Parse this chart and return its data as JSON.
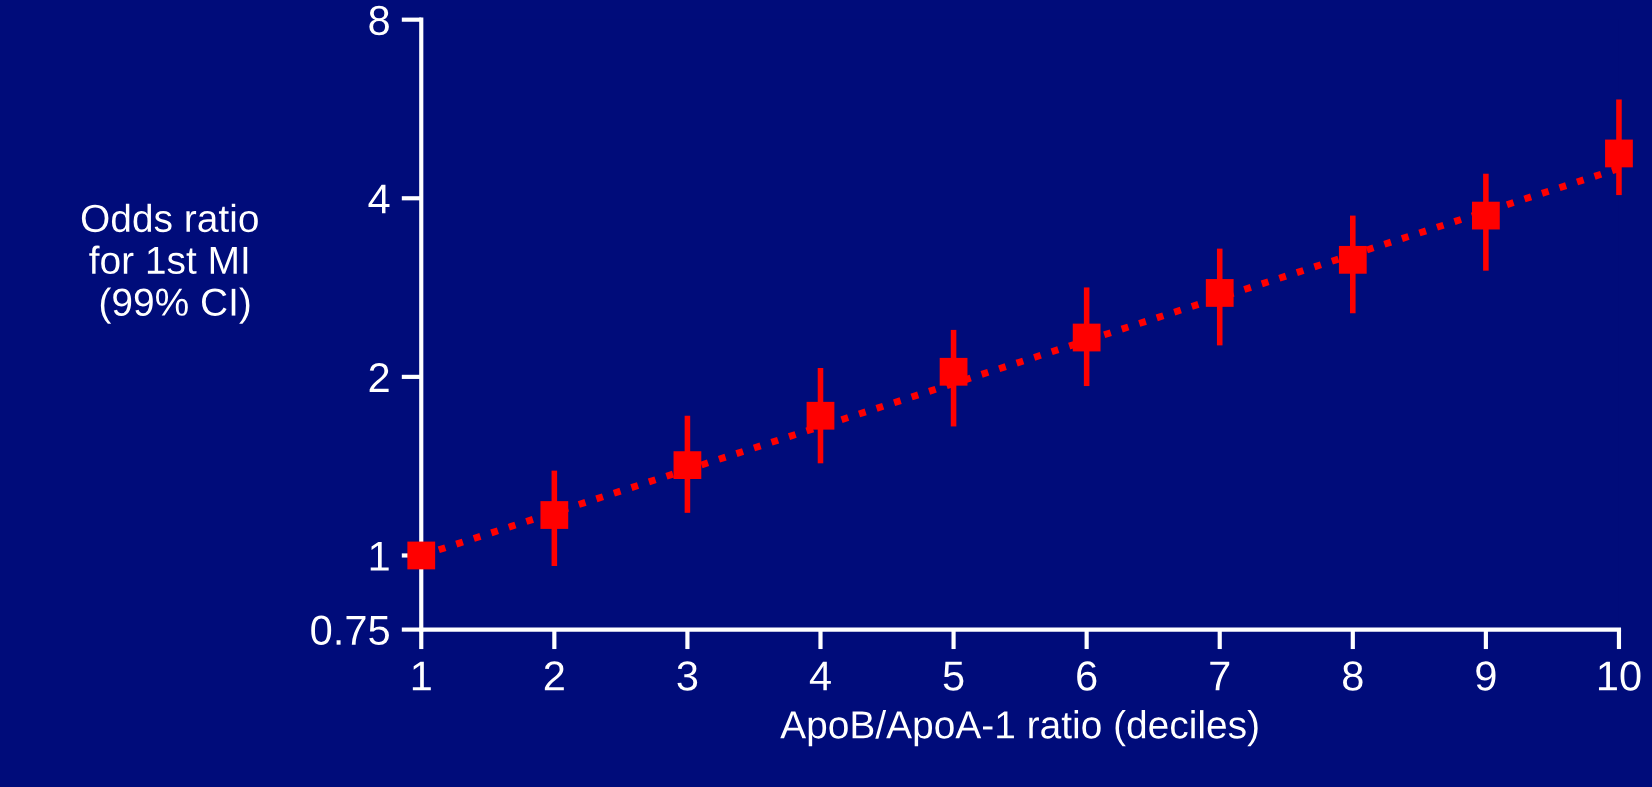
{
  "chart_data": {
    "type": "scatter",
    "xlabel": "ApoB/ApoA-1 ratio (deciles)",
    "ylabel": "Odds ratio\nfor 1st MI\n (99% CI)",
    "x": [
      1,
      2,
      3,
      4,
      5,
      6,
      7,
      8,
      9,
      10
    ],
    "series": [
      {
        "color": "#ff0000",
        "marker": "square",
        "values": [
          1.0,
          1.17,
          1.42,
          1.72,
          2.04,
          2.33,
          2.77,
          3.15,
          3.74,
          4.76
        ],
        "errors": [
          null,
          [
            0.96,
            1.39
          ],
          [
            1.18,
            1.72
          ],
          [
            1.43,
            2.07
          ],
          [
            1.65,
            2.4
          ],
          [
            1.93,
            2.83
          ],
          [
            2.26,
            3.29
          ],
          [
            2.56,
            3.74
          ],
          [
            3.02,
            4.4
          ],
          [
            4.05,
            5.87
          ]
        ]
      },
      {
        "type": "line",
        "color": "#ff0000",
        "line_style": "dotted",
        "marker": "none",
        "x": [
          1,
          10
        ],
        "values": [
          1.0,
          4.49
        ]
      }
    ],
    "log": "y",
    "xlim": [
      1,
      10
    ],
    "xticks": [
      1,
      2,
      3,
      4,
      5,
      6,
      7,
      8,
      9,
      10
    ],
    "ylim": [
      0.75,
      8
    ],
    "yticks": [
      0.75,
      1,
      2,
      4,
      8
    ],
    "grid": false
  }
}
